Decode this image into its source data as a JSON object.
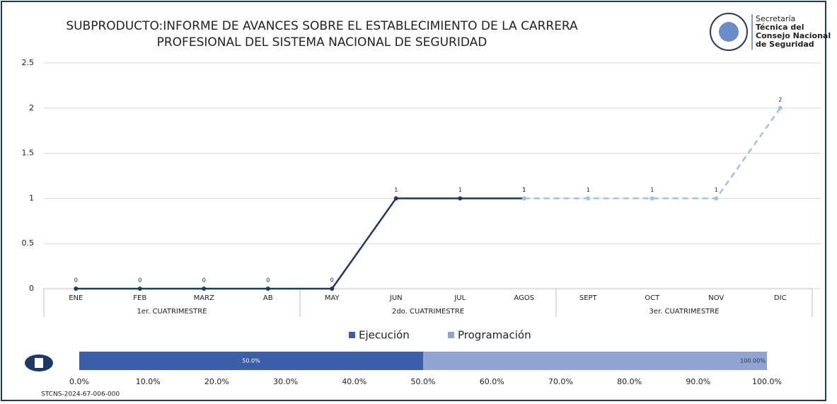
{
  "chart_data": [
    {
      "type": "line",
      "title": [
        "SUBPRODUCTO:INFORME DE AVANCES SOBRE EL ESTABLECIMIENTO DE LA CARRERA",
        "PROFESIONAL DEL SISTEMA NACIONAL DE SEGURIDAD"
      ],
      "categories": [
        "ENE",
        "FEB",
        "MARZ",
        "AB",
        "MAY",
        "JUN",
        "JUL",
        "AGOS",
        "SEPT",
        "OCT",
        "NOV",
        "DIC"
      ],
      "groups": [
        "1er. CUATRIMESTRE",
        "2do. CUATRIMESTRE",
        "3er. CUATRIMESTRE"
      ],
      "series": [
        {
          "color": "#1f3864",
          "dashed": false,
          "values": [
            0,
            0,
            0,
            0,
            0,
            1,
            1,
            1,
            null,
            null,
            null,
            null
          ]
        },
        {
          "color": "#9dc3e6",
          "dashed": true,
          "values": [
            null,
            null,
            null,
            null,
            null,
            null,
            null,
            1,
            1,
            1,
            1,
            2
          ]
        }
      ],
      "ylim": [
        0,
        2.5
      ],
      "yticks": [
        0,
        0.5,
        1,
        1.5,
        2,
        2.5
      ],
      "grid": true
    },
    {
      "type": "progress",
      "series": [
        {
          "name": "Programación",
          "color": "#8fa3d4",
          "values": [
            100
          ],
          "value_labels": [
            "100.00%"
          ]
        },
        {
          "name": "Ejecución",
          "color": "#3a5fa8",
          "values": [
            50
          ],
          "value_labels": [
            "50.0%"
          ]
        }
      ],
      "xlim": [
        0,
        100
      ],
      "xticks": [
        {
          "value": 0,
          "label": "0.0%"
        },
        {
          "value": 10,
          "label": "10.0%"
        },
        {
          "value": 20,
          "label": "20.0%"
        },
        {
          "value": 30,
          "label": "30.0%"
        },
        {
          "value": 40,
          "label": "40.0%"
        },
        {
          "value": 50,
          "label": "50.0%"
        },
        {
          "value": 60,
          "label": "60.0%"
        },
        {
          "value": 70,
          "label": "70.0%"
        },
        {
          "value": 80,
          "label": "80.0%"
        },
        {
          "value": 90,
          "label": "90.0%"
        },
        {
          "value": 100,
          "label": "100.0%"
        }
      ]
    }
  ],
  "logo": [
    "Secretaría",
    "Técnica del",
    "Consejo Nacional",
    "de Seguridad"
  ],
  "footer": "STCNS-2024-67-006-000"
}
